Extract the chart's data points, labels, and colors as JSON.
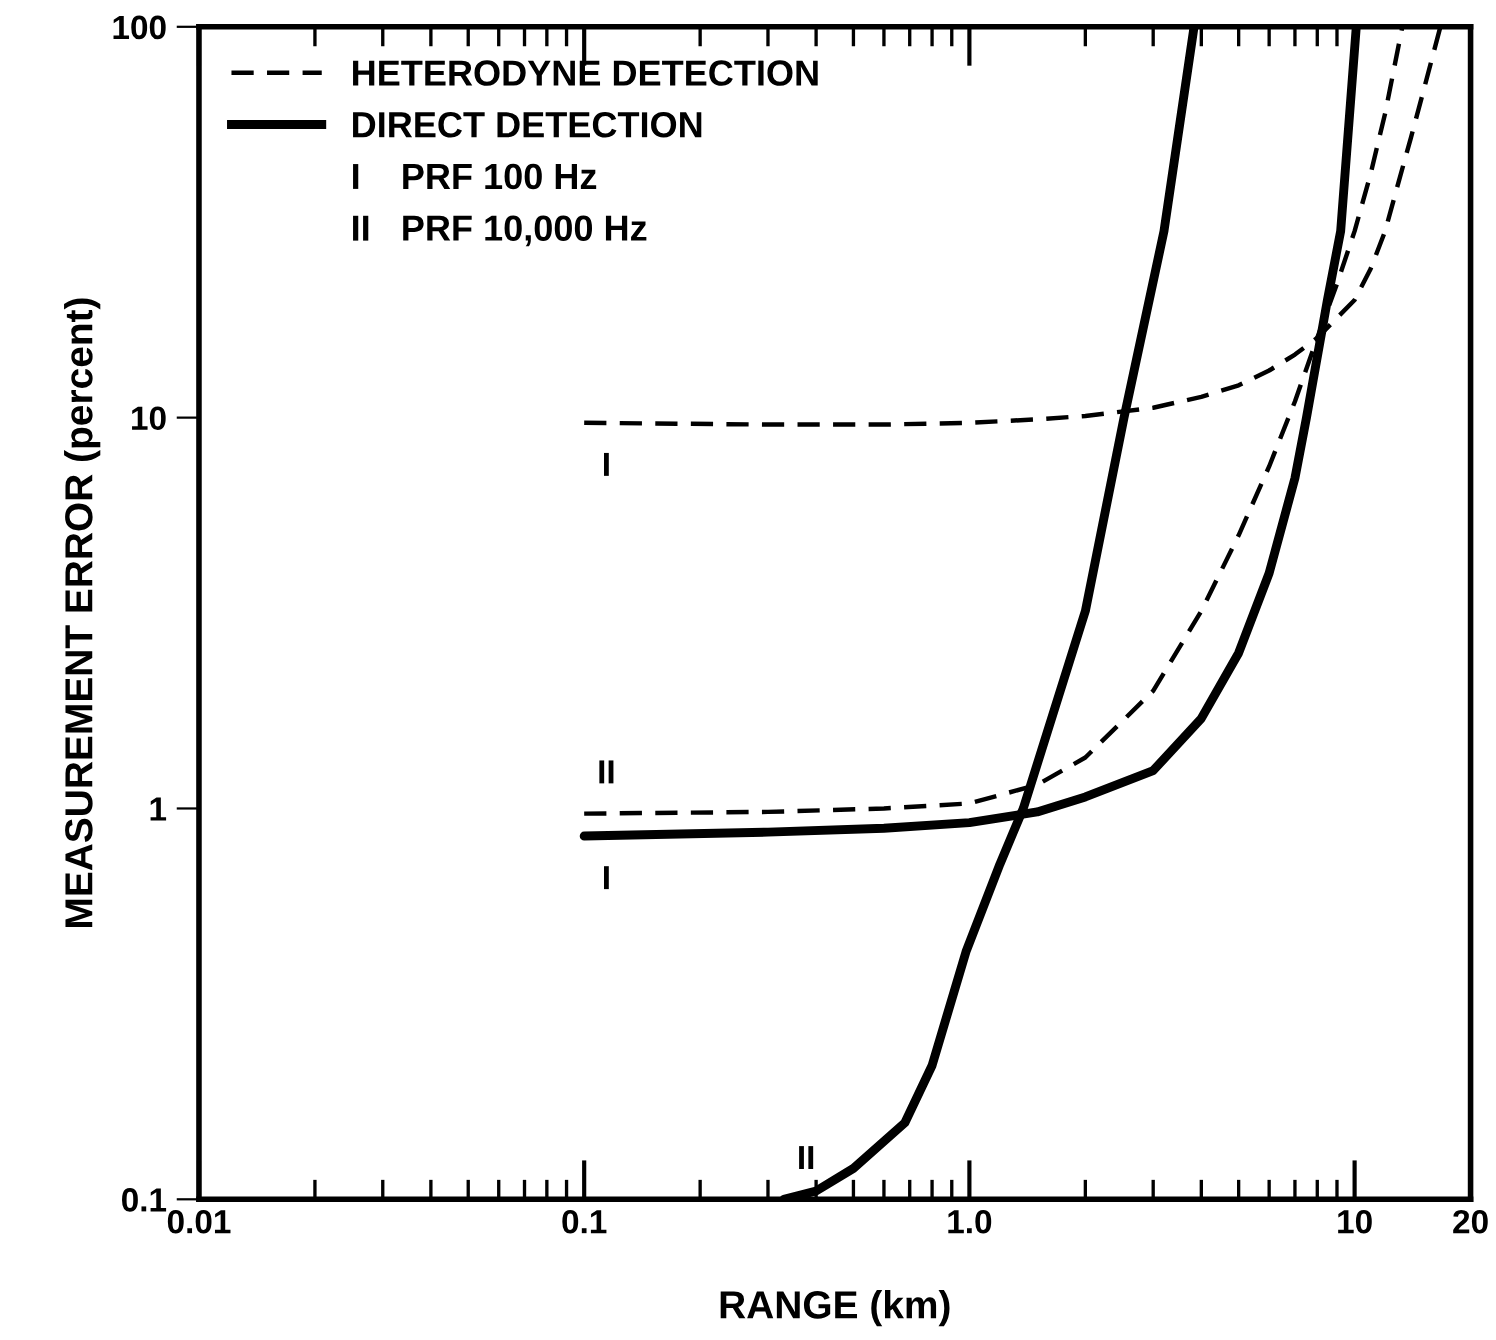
{
  "chart_data": {
    "type": "line",
    "xlabel": "RANGE (km)",
    "ylabel": "MEASUREMENT ERROR (percent)",
    "log": "xy",
    "grid": false,
    "legend": "top left",
    "marker": "none",
    "xlim": [
      0.01,
      20
    ],
    "xticks": [
      0.01,
      0.1,
      {
        "value": 1,
        "label": "1.0"
      },
      10,
      20
    ],
    "ylim": [
      0.1,
      100
    ],
    "yticks": [
      0.1,
      1,
      10,
      100
    ],
    "series": [
      {
        "name": "HETERODYNE DETECTION",
        "color": "#000000",
        "line_style": "dashed",
        "x": [
          0.1,
          0.3,
          0.6,
          1,
          1.5,
          2,
          3,
          4,
          5,
          6,
          7,
          8,
          9,
          10,
          11,
          12,
          13,
          14,
          15,
          16.7
        ],
        "values": [
          9.7,
          9.6,
          9.6,
          9.7,
          9.9,
          10.1,
          10.6,
          11.3,
          12.1,
          13.2,
          14.5,
          16,
          18,
          20,
          24,
          30,
          40,
          52,
          67,
          100
        ]
      },
      {
        "color": "#000000",
        "line_style": "dashed",
        "x": [
          0.1,
          0.3,
          0.6,
          1,
          1.5,
          2,
          3,
          4,
          5,
          6,
          7,
          8,
          9,
          10,
          11,
          12,
          13.3
        ],
        "values": [
          0.97,
          0.98,
          1.0,
          1.03,
          1.15,
          1.35,
          2.0,
          3.2,
          5,
          7.5,
          11,
          16,
          22,
          30,
          42,
          60,
          100
        ]
      },
      {
        "name": "DIRECT DETECTION",
        "color": "#000000",
        "line_style": "solid",
        "x": [
          0.1,
          0.3,
          0.6,
          1,
          1.5,
          2,
          3,
          4,
          5,
          6,
          7,
          7.5,
          8.5,
          9.2,
          10.1
        ],
        "values": [
          0.85,
          0.87,
          0.89,
          0.92,
          0.98,
          1.07,
          1.25,
          1.7,
          2.5,
          4,
          7,
          10,
          20,
          30,
          100
        ]
      },
      {
        "color": "#000000",
        "line_style": "solid",
        "x": [
          0.33,
          0.4,
          0.5,
          0.68,
          0.8,
          0.98,
          1.2,
          1.38,
          2.0,
          2.52,
          3.2,
          3.83
        ],
        "values": [
          0.1,
          0.105,
          0.12,
          0.157,
          0.22,
          0.43,
          0.72,
          1.0,
          3.2,
          10,
          30,
          100
        ]
      }
    ],
    "annotations": [
      "I",
      "II",
      "I",
      "II",
      "I    PRF 100 Hz",
      "II   PRF 10,000 Hz"
    ]
  }
}
